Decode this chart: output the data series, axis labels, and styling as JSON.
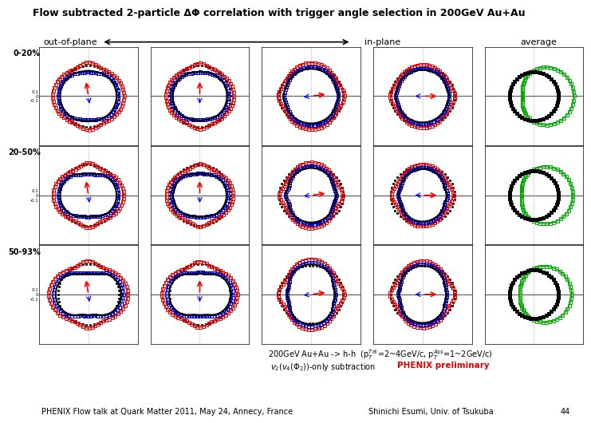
{
  "title": "Flow subtracted 2-particle ΔΦ correlation with trigger angle selection in 200GeV Au+Au",
  "subtitle_line1": "200GeV Au+Au -> h-h  (p_T^{Trk}=2~4GeV/c, p_T^{Ass}=1~2GeV/c)",
  "subtitle_line2": "v_2(v_4(Φ_2))-only subtraction",
  "subtitle_phenix": "PHENIX preliminary",
  "footer_left": "PHENIX Flow talk at Quark Matter 2011, May 24, Annecy, France",
  "footer_right": "Shinichi Esumi, Univ. of Tsukuba",
  "footer_num": "44",
  "row_labels": [
    "0-20%",
    "20-50%",
    "50-93%"
  ],
  "col_header_left": "out-of-plane",
  "col_header_mid": "in-plane",
  "col_header_right": "average",
  "n_rows": 3,
  "n_cols": 5,
  "color_black": "#000000",
  "color_red": "#dd0000",
  "color_blue": "#0000cc",
  "color_green": "#00aa00",
  "color_phenix_red": "#dd0000",
  "bg_color": "#ffffff",
  "grid_color": "#888888"
}
